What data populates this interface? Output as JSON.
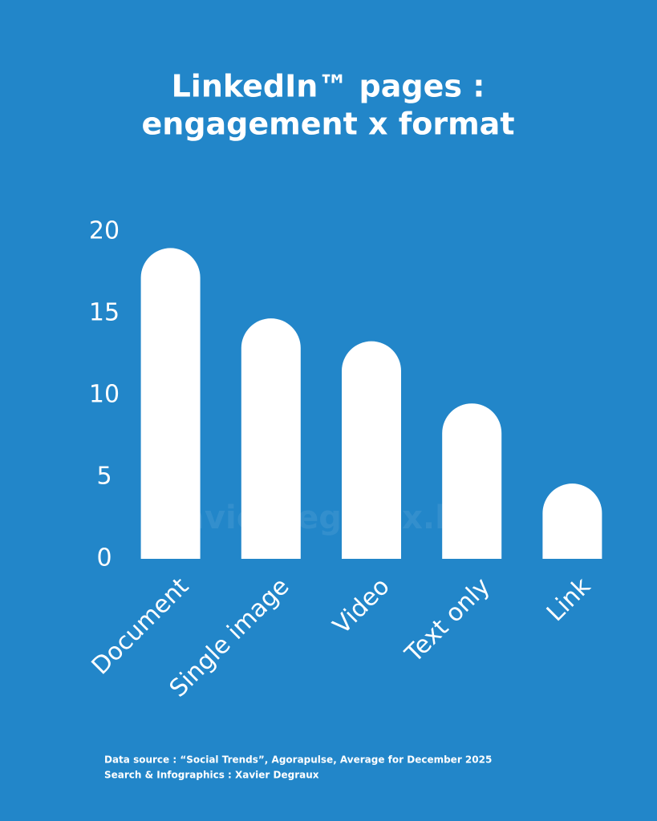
{
  "chart_data": {
    "type": "bar",
    "title": [
      "LinkedIn™ pages :",
      "engagement x format"
    ],
    "categories": [
      "Document",
      "Single image",
      "Video",
      "Text only",
      "Link"
    ],
    "values": [
      19.0,
      14.7,
      13.3,
      9.5,
      4.6
    ],
    "color": "#ffffff",
    "ylim": [
      0,
      20
    ],
    "yticks": [
      0,
      5,
      10,
      15,
      20
    ],
    "grid": false,
    "watermark": "xavierdegraux.be",
    "footnotes": [
      "Data source :  “Social Trends”, Agorapulse, Average for December 2025",
      "Search & Infographics : Xavier Degraux"
    ]
  }
}
